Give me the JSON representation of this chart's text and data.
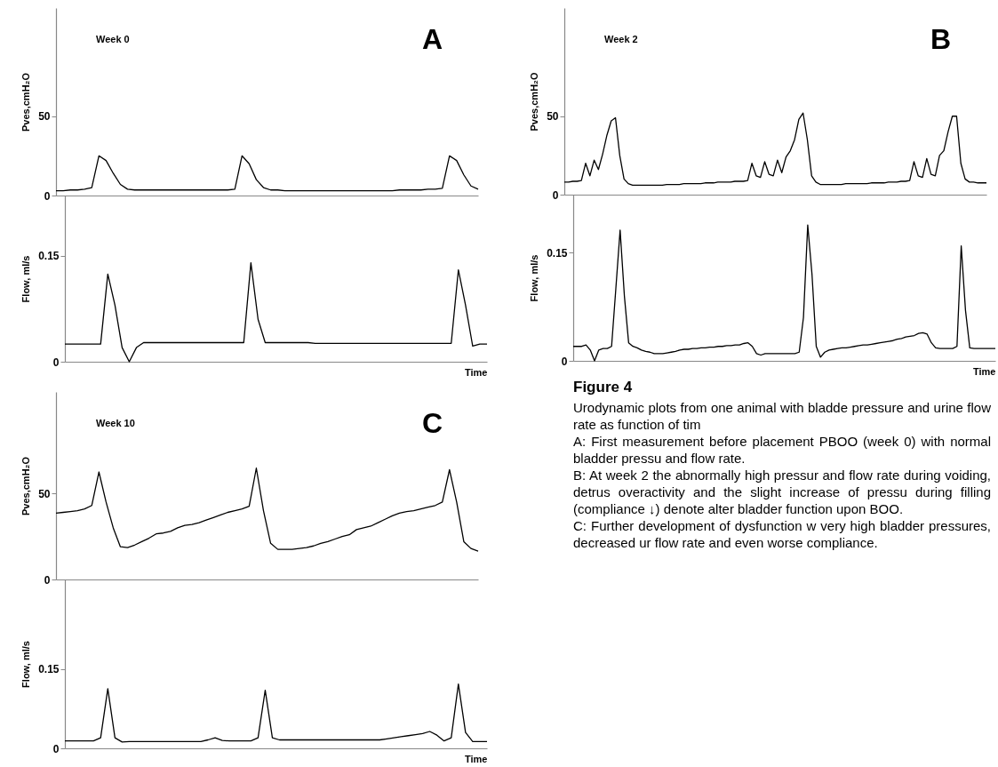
{
  "chart_data": [
    {
      "type": "line",
      "title": "Week 0",
      "annotations": [
        "A"
      ],
      "ylabel": "Pves,cmH₂O",
      "ylim": [
        0,
        118
      ],
      "yticks": [
        0,
        50
      ],
      "grid": false,
      "tick_labels": "y",
      "categories": [
        null,
        null,
        null,
        null,
        null,
        null,
        null,
        null,
        null,
        null,
        null,
        null,
        null,
        null,
        null,
        null,
        null,
        null,
        null,
        null,
        null,
        null,
        null,
        null,
        null,
        null,
        null,
        null,
        null,
        null,
        null,
        null,
        null,
        null,
        null,
        null,
        null,
        null,
        null,
        null,
        null,
        null,
        null,
        null,
        null,
        null,
        null,
        null,
        null,
        null,
        null,
        null,
        null,
        null,
        null,
        null,
        null,
        null,
        null,
        null
      ],
      "series": [
        {
          "color": "#000000",
          "values": [
            3,
            3,
            3.5,
            3.5,
            4,
            5,
            25,
            22,
            14,
            7,
            4,
            3.5,
            3.5,
            3.5,
            3.5,
            3.5,
            3.5,
            3.5,
            3.5,
            3.5,
            3.5,
            3.5,
            3.5,
            3.5,
            3.5,
            4,
            25,
            20,
            10,
            5,
            3.5,
            3.5,
            3,
            3,
            3,
            3,
            3,
            3,
            3,
            3,
            3,
            3,
            3,
            3,
            3,
            3,
            3,
            3,
            3.5,
            3.5,
            3.5,
            3.5,
            4,
            4,
            4.5,
            25,
            22,
            13,
            6,
            4
          ]
        }
      ]
    },
    {
      "type": "line",
      "xlabel": "Time",
      "ylabel": "Flow, ml/s",
      "ylim": [
        0,
        0.235
      ],
      "yticks": [
        0,
        0.15
      ],
      "grid": false,
      "tick_labels": "y",
      "categories": [
        null,
        null,
        null,
        null,
        null,
        null,
        null,
        null,
        null,
        null,
        null,
        null,
        null,
        null,
        null,
        null,
        null,
        null,
        null,
        null,
        null,
        null,
        null,
        null,
        null,
        null,
        null,
        null,
        null,
        null,
        null,
        null,
        null,
        null,
        null,
        null,
        null,
        null,
        null,
        null,
        null,
        null,
        null,
        null,
        null,
        null,
        null,
        null,
        null,
        null,
        null,
        null,
        null,
        null,
        null,
        null,
        null,
        null,
        null,
        null
      ],
      "series": [
        {
          "color": "#000000",
          "values": [
            0.025,
            0.025,
            0.025,
            0.025,
            0.025,
            0.025,
            0.124,
            0.08,
            0.02,
            0,
            0.02,
            0.027,
            0.027,
            0.027,
            0.027,
            0.027,
            0.027,
            0.027,
            0.027,
            0.027,
            0.027,
            0.027,
            0.027,
            0.027,
            0.027,
            0.027,
            0.14,
            0.06,
            0.027,
            0.027,
            0.027,
            0.027,
            0.027,
            0.027,
            0.027,
            0.026,
            0.026,
            0.026,
            0.026,
            0.026,
            0.026,
            0.026,
            0.026,
            0.026,
            0.026,
            0.026,
            0.026,
            0.026,
            0.026,
            0.026,
            0.026,
            0.026,
            0.026,
            0.026,
            0.026,
            0.13,
            0.08,
            0.022,
            0.025,
            0.025
          ]
        }
      ]
    },
    {
      "type": "line",
      "title": "Week 2",
      "annotations": [
        "B"
      ],
      "ylabel": "Pves,cmH₂O",
      "ylim": [
        0,
        119
      ],
      "yticks": [
        0,
        50
      ],
      "grid": false,
      "tick_labels": "y",
      "categories": [
        null,
        null,
        null,
        null,
        null,
        null,
        null,
        null,
        null,
        null,
        null,
        null,
        null,
        null,
        null,
        null,
        null,
        null,
        null,
        null,
        null,
        null,
        null,
        null,
        null,
        null,
        null,
        null,
        null,
        null,
        null,
        null,
        null,
        null,
        null,
        null,
        null,
        null,
        null,
        null,
        null,
        null,
        null,
        null,
        null,
        null,
        null,
        null,
        null,
        null,
        null,
        null,
        null,
        null,
        null,
        null,
        null,
        null,
        null,
        null,
        null,
        null,
        null,
        null,
        null,
        null,
        null,
        null,
        null,
        null,
        null,
        null,
        null,
        null,
        null,
        null,
        null,
        null,
        null,
        null,
        null,
        null,
        null,
        null,
        null,
        null,
        null,
        null,
        null,
        null,
        null,
        null,
        null,
        null,
        null,
        null,
        null,
        null,
        null,
        null
      ],
      "series": [
        {
          "color": "#000000",
          "values": [
            8,
            8,
            8.5,
            8.5,
            9,
            20,
            12,
            22,
            16,
            26,
            38,
            47,
            49,
            25,
            10,
            7,
            6,
            6,
            6,
            6,
            6,
            6,
            6,
            6,
            6.5,
            6.5,
            6.5,
            6.5,
            7,
            7,
            7,
            7,
            7,
            7.5,
            7.5,
            7.5,
            8,
            8,
            8,
            8,
            8.5,
            8.5,
            8.5,
            9,
            20,
            12,
            11,
            21,
            13,
            12,
            22,
            14,
            24,
            28,
            35,
            48,
            52,
            35,
            12,
            8,
            6.5,
            6.5,
            6.5,
            6.5,
            6.5,
            6.5,
            7,
            7,
            7,
            7,
            7,
            7,
            7.5,
            7.5,
            7.5,
            7.5,
            8,
            8,
            8,
            8.5,
            8.5,
            9,
            21,
            12,
            11,
            23,
            13,
            12,
            25,
            28,
            40,
            50,
            50,
            20,
            10,
            8,
            8,
            7.5,
            7.5,
            7.5
          ]
        }
      ]
    },
    {
      "type": "line",
      "xlabel": "Time",
      "ylabel": "Flow, ml/s",
      "ylim": [
        0,
        0.23
      ],
      "yticks": [
        0,
        0.15
      ],
      "grid": false,
      "tick_labels": "y",
      "categories": [
        null,
        null,
        null,
        null,
        null,
        null,
        null,
        null,
        null,
        null,
        null,
        null,
        null,
        null,
        null,
        null,
        null,
        null,
        null,
        null,
        null,
        null,
        null,
        null,
        null,
        null,
        null,
        null,
        null,
        null,
        null,
        null,
        null,
        null,
        null,
        null,
        null,
        null,
        null,
        null,
        null,
        null,
        null,
        null,
        null,
        null,
        null,
        null,
        null,
        null,
        null,
        null,
        null,
        null,
        null,
        null,
        null,
        null,
        null,
        null,
        null,
        null,
        null,
        null,
        null,
        null,
        null,
        null,
        null,
        null,
        null,
        null,
        null,
        null,
        null,
        null,
        null,
        null,
        null,
        null,
        null,
        null,
        null,
        null,
        null,
        null,
        null,
        null,
        null,
        null,
        null,
        null,
        null,
        null,
        null,
        null,
        null,
        null,
        null,
        null
      ],
      "series": [
        {
          "color": "#000000",
          "values": [
            0.02,
            0.02,
            0.02,
            0.022,
            0.015,
            0,
            0.015,
            0.017,
            0.017,
            0.02,
            0.1,
            0.181,
            0.09,
            0.025,
            0.02,
            0.018,
            0.015,
            0.013,
            0.012,
            0.01,
            0.01,
            0.01,
            0.011,
            0.012,
            0.013,
            0.015,
            0.016,
            0.016,
            0.017,
            0.017,
            0.018,
            0.018,
            0.019,
            0.019,
            0.02,
            0.02,
            0.021,
            0.021,
            0.022,
            0.022,
            0.024,
            0.025,
            0.02,
            0.01,
            0.008,
            0.01,
            0.01,
            0.01,
            0.01,
            0.01,
            0.01,
            0.01,
            0.01,
            0.012,
            0.06,
            0.188,
            0.12,
            0.02,
            0.005,
            0.012,
            0.015,
            0.016,
            0.017,
            0.018,
            0.018,
            0.019,
            0.02,
            0.021,
            0.022,
            0.022,
            0.023,
            0.024,
            0.025,
            0.026,
            0.027,
            0.028,
            0.03,
            0.031,
            0.033,
            0.034,
            0.035,
            0.038,
            0.039,
            0.037,
            0.025,
            0.018,
            0.017,
            0.017,
            0.017,
            0.017,
            0.02,
            0.159,
            0.07,
            0.018,
            0.017,
            0.017,
            0.017,
            0.017,
            0.017,
            0.017
          ]
        }
      ]
    },
    {
      "type": "line",
      "title": "Week 10",
      "annotations": [
        "C"
      ],
      "ylabel": "Pves,cmH₂O",
      "ylim": [
        0,
        109
      ],
      "yticks": [
        0,
        50
      ],
      "grid": false,
      "tick_labels": "y",
      "categories": [
        null,
        null,
        null,
        null,
        null,
        null,
        null,
        null,
        null,
        null,
        null,
        null,
        null,
        null,
        null,
        null,
        null,
        null,
        null,
        null,
        null,
        null,
        null,
        null,
        null,
        null,
        null,
        null,
        null,
        null,
        null,
        null,
        null,
        null,
        null,
        null,
        null,
        null,
        null,
        null,
        null,
        null,
        null,
        null,
        null,
        null,
        null,
        null,
        null,
        null,
        null,
        null,
        null,
        null,
        null,
        null,
        null,
        null,
        null,
        null
      ],
      "series": [
        {
          "color": "#000000",
          "values": [
            38.5,
            39,
            39.5,
            40,
            41,
            43,
            62.5,
            45,
            30,
            19,
            18.5,
            20,
            22,
            24,
            26.5,
            27,
            28,
            30,
            31.5,
            32,
            33,
            34.5,
            36,
            37.5,
            39,
            40,
            41,
            42.5,
            64.7,
            40,
            21,
            17.5,
            17.5,
            17.5,
            18,
            18.5,
            19.5,
            21,
            22,
            23.5,
            25,
            26,
            29,
            30,
            31,
            33,
            35,
            37,
            38.5,
            39.5,
            40,
            41,
            42,
            43,
            45,
            63.8,
            45,
            22,
            18,
            16.5
          ]
        }
      ]
    },
    {
      "type": "line",
      "xlabel": "Time",
      "ylabel": "Flow, ml/s",
      "ylim": [
        0,
        0.32
      ],
      "yticks": [
        0,
        0.15
      ],
      "grid": false,
      "tick_labels": "y",
      "categories": [
        null,
        null,
        null,
        null,
        null,
        null,
        null,
        null,
        null,
        null,
        null,
        null,
        null,
        null,
        null,
        null,
        null,
        null,
        null,
        null,
        null,
        null,
        null,
        null,
        null,
        null,
        null,
        null,
        null,
        null,
        null,
        null,
        null,
        null,
        null,
        null,
        null,
        null,
        null,
        null,
        null,
        null,
        null,
        null,
        null,
        null,
        null,
        null,
        null,
        null,
        null,
        null,
        null,
        null,
        null,
        null,
        null,
        null,
        null,
        null
      ],
      "series": [
        {
          "color": "#000000",
          "values": [
            0.014,
            0.014,
            0.014,
            0.014,
            0.014,
            0.02,
            0.113,
            0.02,
            0.012,
            0.013,
            0.013,
            0.013,
            0.013,
            0.013,
            0.013,
            0.013,
            0.013,
            0.013,
            0.013,
            0.013,
            0.016,
            0.02,
            0.015,
            0.014,
            0.014,
            0.014,
            0.014,
            0.02,
            0.11,
            0.02,
            0.016,
            0.016,
            0.016,
            0.016,
            0.016,
            0.016,
            0.016,
            0.016,
            0.016,
            0.016,
            0.016,
            0.016,
            0.016,
            0.016,
            0.016,
            0.018,
            0.02,
            0.022,
            0.024,
            0.026,
            0.028,
            0.032,
            0.025,
            0.014,
            0.02,
            0.122,
            0.03,
            0.013,
            0.013,
            0.013
          ]
        }
      ]
    },
    {
      "type": "other",
      "title": "Figure 4",
      "annotations": [
        "Urodynamic plots from one animal with bladde pressure and urine flow rate as function of tim",
        "A: First measurement before placement PBOO (week 0) with normal bladder pressu and flow rate.",
        "B: At week 2 the abnormally high pressur and flow rate during voiding, detrus overactivity and the slight increase of pressu during filling (compliance ↓) denote alter bladder function upon BOO.",
        "C: Further development of dysfunction w very high bladder pressures, decreased ur flow rate and even worse compliance."
      ]
    }
  ]
}
